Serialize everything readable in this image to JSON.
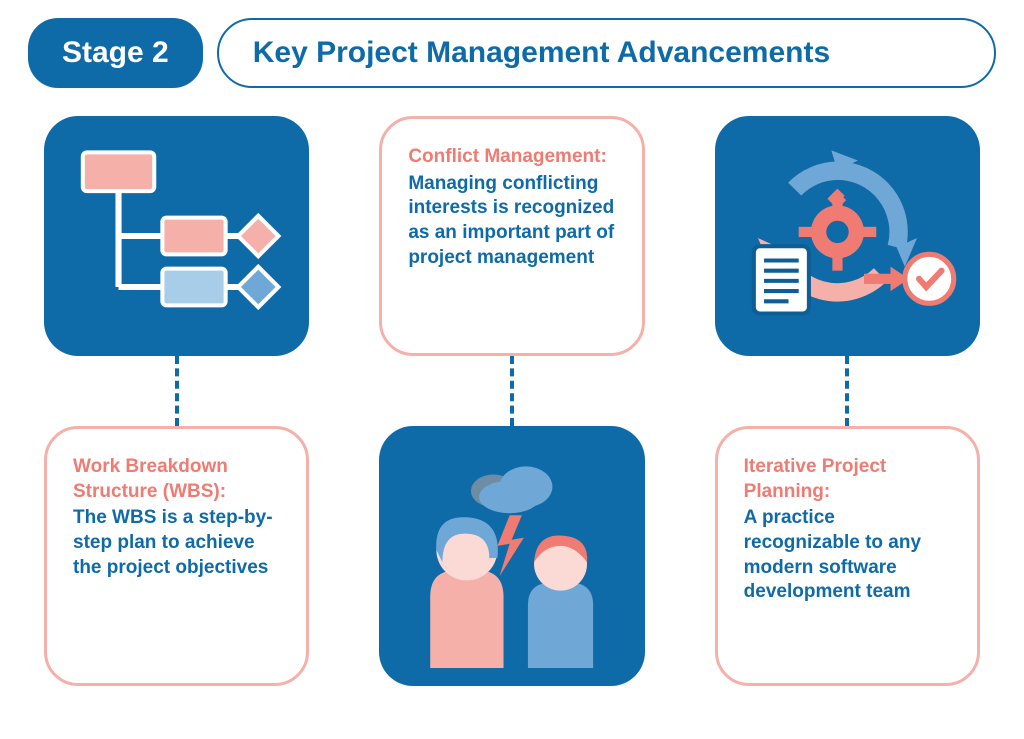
{
  "colors": {
    "blue": "#0f6ba8",
    "blue_dark": "#0d5e94",
    "coral": "#ef7b72",
    "coral_light": "#f5b0aa",
    "coral_pale": "#fbdad6",
    "sky": "#6fa8d6",
    "sky_light": "#a8cde8",
    "gray": "#6e8ca3",
    "white": "#ffffff"
  },
  "header": {
    "stage_label": "Stage 2",
    "stage_bg": "#0f6ba8",
    "title": "Key Project Management Advancements",
    "title_color": "#0f6ba8",
    "title_border": "#0f6ba8"
  },
  "layout": {
    "type": "infographic",
    "grid": "3x2",
    "connector_color": "#0f6ba8"
  },
  "cards": {
    "wbs_icon": {
      "bg": "#0f6ba8"
    },
    "conflict_text": {
      "border": "#f5b0aa",
      "title": "Conflict Management:",
      "title_color": "#ef7b72",
      "body": "Managing conflicting interests is recognized as an important part of project management",
      "body_color": "#0f6ba8"
    },
    "iterative_icon": {
      "bg": "#0f6ba8"
    },
    "wbs_text": {
      "border": "#f5b0aa",
      "title": "Work Breakdown Structure (WBS):",
      "title_color": "#ef7b72",
      "body": "The WBS is a step-by-step plan to achieve the project objectives",
      "body_color": "#0f6ba8"
    },
    "conflict_icon": {
      "bg": "#0f6ba8"
    },
    "iterative_text": {
      "border": "#f5b0aa",
      "title": "Iterative Project Planning:",
      "title_color": "#ef7b72",
      "body": "A practice recognizable to any modern software development team",
      "body_color": "#0f6ba8"
    }
  }
}
